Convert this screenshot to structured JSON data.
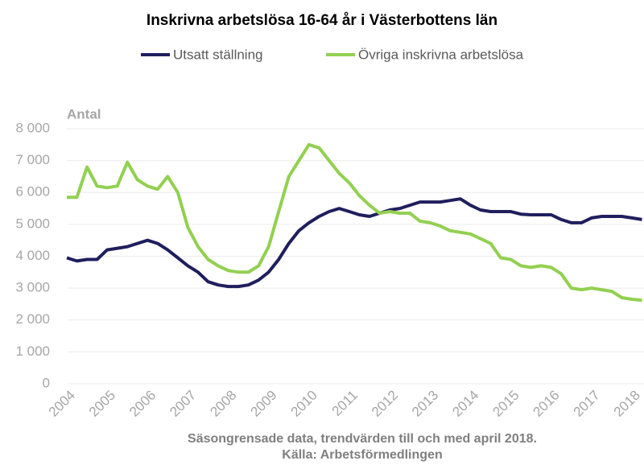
{
  "chart_data": {
    "type": "line",
    "title": "Inskrivna arbetslösa 16-64 år i Västerbottens län",
    "y_label": "Antal",
    "notes": [
      "Säsongrensade data, trendvärden till och med april 2018.",
      "Källa: Arbetsförmedlingen"
    ],
    "x": [
      2004,
      2004.25,
      2004.5,
      2004.75,
      2005,
      2005.25,
      2005.5,
      2005.75,
      2006,
      2006.25,
      2006.5,
      2006.75,
      2007,
      2007.25,
      2007.5,
      2007.75,
      2008,
      2008.25,
      2008.5,
      2008.75,
      2009,
      2009.25,
      2009.5,
      2009.75,
      2010,
      2010.25,
      2010.5,
      2010.75,
      2011,
      2011.25,
      2011.5,
      2011.75,
      2012,
      2012.25,
      2012.5,
      2012.75,
      2013,
      2013.25,
      2013.5,
      2013.75,
      2014,
      2014.25,
      2014.5,
      2014.75,
      2015,
      2015.25,
      2015.5,
      2015.75,
      2016,
      2016.25,
      2016.5,
      2016.75,
      2017,
      2017.25,
      2017.5,
      2017.75,
      2018,
      2018.25
    ],
    "series": [
      {
        "name": "Utsatt ställning",
        "color": "#1f1f5e",
        "values": [
          3950,
          3850,
          3900,
          3900,
          4200,
          4250,
          4300,
          4400,
          4500,
          4400,
          4200,
          3950,
          3700,
          3500,
          3200,
          3100,
          3050,
          3050,
          3100,
          3250,
          3500,
          3900,
          4400,
          4800,
          5050,
          5250,
          5400,
          5500,
          5400,
          5300,
          5250,
          5350,
          5450,
          5500,
          5600,
          5700,
          5700,
          5700,
          5750,
          5800,
          5600,
          5450,
          5400,
          5400,
          5400,
          5320,
          5300,
          5300,
          5300,
          5150,
          5050,
          5050,
          5200,
          5250,
          5250,
          5250,
          5200,
          5150
        ]
      },
      {
        "name": "Övriga inskrivna arbetslösa",
        "color": "#92d050",
        "values": [
          5850,
          5850,
          6800,
          6200,
          6150,
          6200,
          6950,
          6400,
          6200,
          6100,
          6500,
          6000,
          4900,
          4300,
          3900,
          3700,
          3550,
          3500,
          3500,
          3700,
          4300,
          5400,
          6500,
          7000,
          7500,
          7400,
          7000,
          6600,
          6300,
          5900,
          5600,
          5350,
          5400,
          5350,
          5350,
          5100,
          5050,
          4950,
          4800,
          4750,
          4700,
          4550,
          4400,
          3950,
          3900,
          3700,
          3650,
          3700,
          3650,
          3450,
          3000,
          2950,
          3000,
          2950,
          2900,
          2700,
          2650,
          2620
        ]
      }
    ],
    "xlim": [
      2004,
      2018.3
    ],
    "xticks": [
      2004,
      2005,
      2006,
      2007,
      2008,
      2009,
      2010,
      2011,
      2012,
      2013,
      2014,
      2015,
      2016,
      2017,
      2018
    ],
    "ylim": [
      0,
      8000
    ],
    "yticks": [
      {
        "value": 0,
        "label": "0"
      },
      {
        "value": 1000,
        "label": "1 000"
      },
      {
        "value": 2000,
        "label": "2 000"
      },
      {
        "value": 3000,
        "label": "3 000"
      },
      {
        "value": 4000,
        "label": "4 000"
      },
      {
        "value": 5000,
        "label": "5 000"
      },
      {
        "value": 6000,
        "label": "6 000"
      },
      {
        "value": 7000,
        "label": "7 000"
      },
      {
        "value": 8000,
        "label": "8 000"
      }
    ],
    "grid": true
  }
}
